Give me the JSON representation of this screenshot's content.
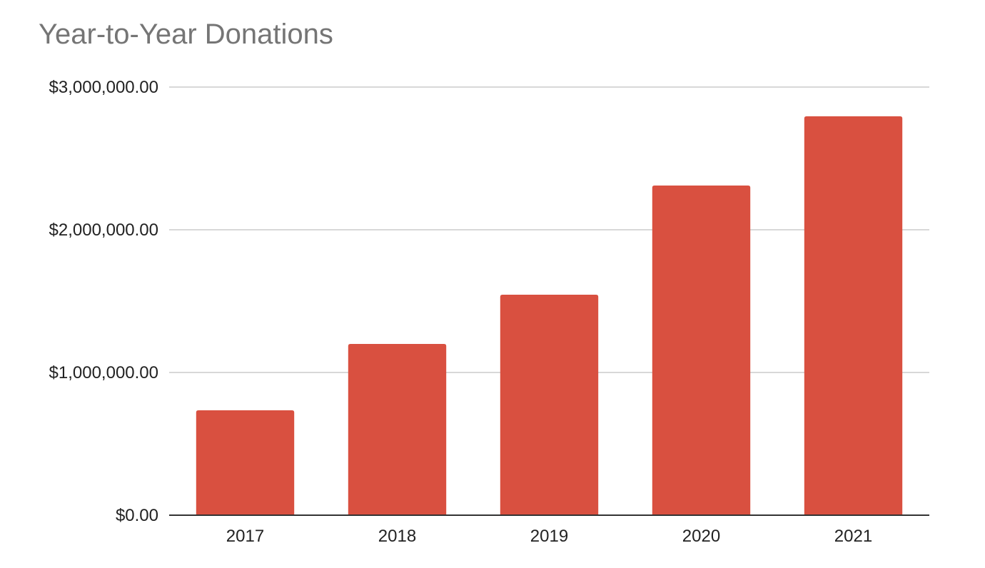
{
  "chart_data": {
    "type": "bar",
    "title": "Year-to-Year Donations",
    "xlabel": "",
    "ylabel": "",
    "categories": [
      "2017",
      "2018",
      "2019",
      "2020",
      "2021"
    ],
    "values": [
      735000,
      1200000,
      1545000,
      2310000,
      2795000
    ],
    "ylim": [
      0,
      3000000
    ],
    "yticks": [
      0,
      1000000,
      2000000,
      3000000
    ],
    "ytick_labels": [
      "$0.00",
      "$1,000,000.00",
      "$2,000,000.00",
      "$3,000,000.00"
    ],
    "grid": true,
    "legend": "none",
    "bar_color": "#d95040"
  }
}
